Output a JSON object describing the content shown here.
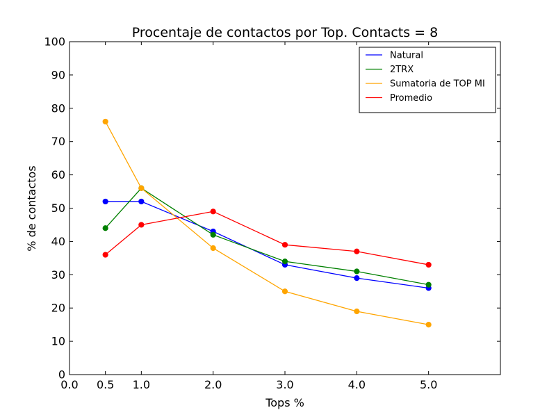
{
  "chart_data": {
    "type": "line",
    "title": "Procentaje de contactos por Top. Contacts = 8",
    "xlabel": "Tops %",
    "ylabel": "% de contactos",
    "xlim": [
      0,
      6
    ],
    "ylim": [
      0,
      100
    ],
    "x_ticks": [
      0,
      0.5,
      1,
      2,
      3,
      4,
      5
    ],
    "x_tick_labels": [
      "0.0",
      "0.5",
      "1.0",
      "2.0",
      "3.0",
      "4.0",
      "5.0"
    ],
    "y_ticks": [
      0,
      10,
      20,
      30,
      40,
      50,
      60,
      70,
      80,
      90,
      100
    ],
    "y_tick_labels": [
      "0",
      "10",
      "20",
      "30",
      "40",
      "50",
      "60",
      "70",
      "80",
      "90",
      "100"
    ],
    "grid": false,
    "legend_position": "top-right",
    "x": [
      0.5,
      1,
      2,
      3,
      4,
      5
    ],
    "series": [
      {
        "name": "Natural",
        "color": "#0000ff",
        "values": [
          52,
          52,
          43,
          33,
          29,
          26
        ]
      },
      {
        "name": "2TRX",
        "color": "#008000",
        "values": [
          44,
          56,
          42,
          34,
          31,
          27
        ]
      },
      {
        "name": "Sumatoria de TOP MI",
        "color": "#ffa500",
        "values": [
          76,
          56,
          38,
          25,
          19,
          15
        ]
      },
      {
        "name": "Promedio",
        "color": "#ff0000",
        "values": [
          36,
          45,
          49,
          39,
          37,
          33
        ]
      }
    ]
  }
}
